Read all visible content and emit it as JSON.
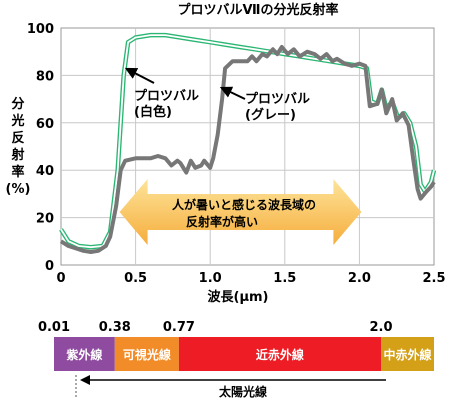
{
  "chart_data": {
    "type": "line",
    "title": "プロツバルⅦの分光反射率",
    "xlabel": "波長(μm)",
    "ylabel": [
      "分",
      "光",
      "反",
      "射",
      "率",
      "(%)"
    ],
    "xlim": [
      0,
      2.5
    ],
    "ylim": [
      0,
      100
    ],
    "xticks": [
      "0",
      "0.5",
      "1.0",
      "1.5",
      "2.0",
      "2.5"
    ],
    "yticks": [
      "0",
      "20",
      "40",
      "60",
      "80",
      "100"
    ],
    "grid": true,
    "series": [
      {
        "name": "プロツバル(白色)",
        "label_lines": [
          "プロツバル",
          "(白色)"
        ],
        "color": "#2bb673",
        "points": [
          [
            0,
            15
          ],
          [
            0.05,
            10
          ],
          [
            0.12,
            8
          ],
          [
            0.2,
            7.5
          ],
          [
            0.28,
            8
          ],
          [
            0.33,
            14
          ],
          [
            0.38,
            40
          ],
          [
            0.42,
            80
          ],
          [
            0.45,
            94
          ],
          [
            0.5,
            96
          ],
          [
            0.6,
            97
          ],
          [
            0.7,
            97
          ],
          [
            0.8,
            96
          ],
          [
            0.9,
            95
          ],
          [
            1.0,
            94
          ],
          [
            1.1,
            93
          ],
          [
            1.2,
            92
          ],
          [
            1.3,
            91
          ],
          [
            1.4,
            90
          ],
          [
            1.5,
            89
          ],
          [
            1.6,
            88
          ],
          [
            1.7,
            87
          ],
          [
            1.8,
            86
          ],
          [
            1.9,
            85
          ],
          [
            2.0,
            84
          ],
          [
            2.05,
            83
          ],
          [
            2.08,
            69
          ],
          [
            2.12,
            68
          ],
          [
            2.15,
            74
          ],
          [
            2.18,
            66
          ],
          [
            2.22,
            69
          ],
          [
            2.26,
            62
          ],
          [
            2.3,
            64
          ],
          [
            2.34,
            60
          ],
          [
            2.38,
            50
          ],
          [
            2.41,
            34
          ],
          [
            2.44,
            31
          ],
          [
            2.48,
            35
          ],
          [
            2.5,
            40
          ]
        ]
      },
      {
        "name": "プロツバル(グレー)",
        "label_lines": [
          "プロツバル",
          "(グレー)"
        ],
        "color": "#777777",
        "points": [
          [
            0,
            10
          ],
          [
            0.05,
            8
          ],
          [
            0.1,
            7
          ],
          [
            0.15,
            6
          ],
          [
            0.2,
            5.5
          ],
          [
            0.25,
            6
          ],
          [
            0.3,
            8
          ],
          [
            0.33,
            12
          ],
          [
            0.37,
            25
          ],
          [
            0.4,
            40
          ],
          [
            0.43,
            44
          ],
          [
            0.5,
            45
          ],
          [
            0.6,
            45
          ],
          [
            0.65,
            46
          ],
          [
            0.7,
            45
          ],
          [
            0.74,
            42
          ],
          [
            0.78,
            44
          ],
          [
            0.8,
            43
          ],
          [
            0.84,
            39
          ],
          [
            0.87,
            44
          ],
          [
            0.9,
            41
          ],
          [
            0.94,
            42
          ],
          [
            0.96,
            44
          ],
          [
            1.0,
            41
          ],
          [
            1.02,
            45
          ],
          [
            1.05,
            55
          ],
          [
            1.08,
            70
          ],
          [
            1.1,
            83
          ],
          [
            1.15,
            86
          ],
          [
            1.2,
            86
          ],
          [
            1.25,
            86
          ],
          [
            1.28,
            88
          ],
          [
            1.31,
            86
          ],
          [
            1.35,
            89
          ],
          [
            1.38,
            88
          ],
          [
            1.42,
            91
          ],
          [
            1.45,
            89
          ],
          [
            1.48,
            92
          ],
          [
            1.52,
            89
          ],
          [
            1.56,
            91
          ],
          [
            1.6,
            88
          ],
          [
            1.65,
            90
          ],
          [
            1.7,
            89
          ],
          [
            1.74,
            87
          ],
          [
            1.78,
            89
          ],
          [
            1.82,
            86
          ],
          [
            1.85,
            87
          ],
          [
            1.9,
            85
          ],
          [
            1.95,
            84
          ],
          [
            2.0,
            85
          ],
          [
            2.04,
            84
          ],
          [
            2.07,
            67
          ],
          [
            2.12,
            68
          ],
          [
            2.15,
            74
          ],
          [
            2.18,
            64
          ],
          [
            2.22,
            70
          ],
          [
            2.25,
            61
          ],
          [
            2.29,
            64
          ],
          [
            2.33,
            59
          ],
          [
            2.36,
            45
          ],
          [
            2.39,
            32
          ],
          [
            2.41,
            28
          ],
          [
            2.45,
            31
          ],
          [
            2.48,
            33
          ],
          [
            2.5,
            35
          ]
        ]
      }
    ],
    "annotation": [
      "人が暑いと感じる波長域の",
      "反射率が高い"
    ],
    "annotation_range": [
      0.5,
      2.0
    ]
  },
  "spectrum_bar": {
    "boundaries": [
      {
        "label": "0.01",
        "value": 0.01
      },
      {
        "label": "0.38",
        "value": 0.38
      },
      {
        "label": "0.77",
        "value": 0.77
      },
      {
        "label": "2.0",
        "value": 2.0
      }
    ],
    "segments": [
      {
        "label": "紫外線",
        "color": "#8e4b9f",
        "from": 0.01,
        "to": 0.38
      },
      {
        "label": "可視光線",
        "color": "#f28c28",
        "from": 0.38,
        "to": 0.77
      },
      {
        "label": "近赤外線",
        "color": "#ee1c24",
        "from": 0.77,
        "to": 2.0
      },
      {
        "label": "中赤外線",
        "color": "#d4a017",
        "from": 2.0,
        "to": 2.4
      }
    ],
    "sunlight_label": "太陽光線"
  }
}
